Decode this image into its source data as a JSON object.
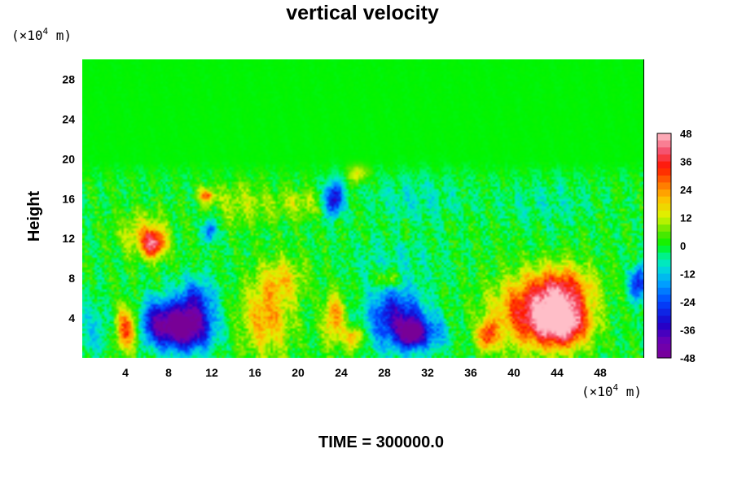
{
  "chart_data": {
    "type": "heatmap",
    "title": "vertical velocity",
    "ylabel": "Height",
    "y_unit_prefix": "(×10",
    "y_unit_exp": "4",
    "y_unit_suffix": " m)",
    "x_unit_prefix": "(×10",
    "x_unit_exp": "4",
    "x_unit_suffix": " m)",
    "xlim": [
      0,
      52
    ],
    "ylim": [
      0,
      30
    ],
    "x_ticks": [
      "4",
      "8",
      "12",
      "16",
      "20",
      "24",
      "28",
      "32",
      "36",
      "40",
      "44",
      "48"
    ],
    "x_tick_values": [
      4,
      8,
      12,
      16,
      20,
      24,
      28,
      32,
      36,
      40,
      44,
      48
    ],
    "y_ticks": [
      "4",
      "8",
      "12",
      "16",
      "20",
      "24",
      "28"
    ],
    "y_tick_values": [
      4,
      8,
      12,
      16,
      20,
      24,
      28
    ],
    "colorbar": {
      "min": -48,
      "max": 48,
      "tick_labels": [
        "48",
        "36",
        "24",
        "12",
        "0",
        "-12",
        "-24",
        "-36",
        "-48"
      ],
      "tick_values": [
        48,
        36,
        24,
        12,
        0,
        -12,
        -24,
        -36,
        -48
      ]
    },
    "features": [
      {
        "x": 4.2,
        "y": 3.0,
        "value": 34,
        "sx": 0.8,
        "sy": 1.6
      },
      {
        "x": 7.0,
        "y": 3.5,
        "value": -34,
        "sx": 1.5,
        "sy": 1.6
      },
      {
        "x": 9.8,
        "y": 3.0,
        "value": -46,
        "sx": 1.6,
        "sy": 1.6
      },
      {
        "x": 10.5,
        "y": 6.0,
        "value": -22,
        "sx": 1.2,
        "sy": 1.5
      },
      {
        "x": 6.6,
        "y": 11.5,
        "value": 36,
        "sx": 0.8,
        "sy": 1.0
      },
      {
        "x": 5.5,
        "y": 12.5,
        "value": 14,
        "sx": 1.5,
        "sy": 1.5
      },
      {
        "x": 11.5,
        "y": 16.3,
        "value": 28,
        "sx": 0.5,
        "sy": 0.5
      },
      {
        "x": 11.8,
        "y": 12.8,
        "value": -26,
        "sx": 0.4,
        "sy": 0.8
      },
      {
        "x": 17.0,
        "y": 4.0,
        "value": 22,
        "sx": 1.6,
        "sy": 2.6
      },
      {
        "x": 18.5,
        "y": 8.0,
        "value": 14,
        "sx": 1.5,
        "sy": 1.5
      },
      {
        "x": 23.3,
        "y": 16.0,
        "value": -36,
        "sx": 0.6,
        "sy": 1.2
      },
      {
        "x": 23.3,
        "y": 4.0,
        "value": 24,
        "sx": 0.7,
        "sy": 1.8
      },
      {
        "x": 25.2,
        "y": 2.0,
        "value": 24,
        "sx": 0.6,
        "sy": 0.8
      },
      {
        "x": 29.0,
        "y": 4.0,
        "value": -34,
        "sx": 1.8,
        "sy": 2.2
      },
      {
        "x": 30.5,
        "y": 2.5,
        "value": -40,
        "sx": 0.8,
        "sy": 1.0
      },
      {
        "x": 32.5,
        "y": 2.5,
        "value": -16,
        "sx": 1.0,
        "sy": 1.2
      },
      {
        "x": 37.5,
        "y": 2.2,
        "value": 30,
        "sx": 0.6,
        "sy": 1.0
      },
      {
        "x": 41.5,
        "y": 4.5,
        "value": 34,
        "sx": 2.5,
        "sy": 2.4
      },
      {
        "x": 44.5,
        "y": 3.5,
        "value": 46,
        "sx": 1.7,
        "sy": 1.6
      },
      {
        "x": 44.5,
        "y": 7.0,
        "value": 28,
        "sx": 2.0,
        "sy": 1.6
      },
      {
        "x": 51.5,
        "y": 7.5,
        "value": -32,
        "sx": 0.6,
        "sy": 1.2
      },
      {
        "x": 15.0,
        "y": 15.5,
        "value": 10,
        "sx": 2.0,
        "sy": 1.5
      },
      {
        "x": 20.0,
        "y": 15.5,
        "value": 10,
        "sx": 1.5,
        "sy": 1.0
      },
      {
        "x": 31.0,
        "y": 16.0,
        "value": -8,
        "sx": 3.0,
        "sy": 1.5
      },
      {
        "x": 43.0,
        "y": 15.5,
        "value": -6,
        "sx": 3.0,
        "sy": 1.5
      },
      {
        "x": 29.0,
        "y": 10.0,
        "value": -6,
        "sx": 3.0,
        "sy": 1.5
      },
      {
        "x": 1.0,
        "y": 3.0,
        "value": -10,
        "sx": 1.2,
        "sy": 2.0
      },
      {
        "x": 25.5,
        "y": 18.5,
        "value": 16,
        "sx": 0.6,
        "sy": 0.6
      },
      {
        "x": 28.3,
        "y": 8.0,
        "value": 16,
        "sx": 0.8,
        "sy": 0.7
      }
    ]
  },
  "footer": {
    "time_label": "TIME = 300000.0"
  }
}
